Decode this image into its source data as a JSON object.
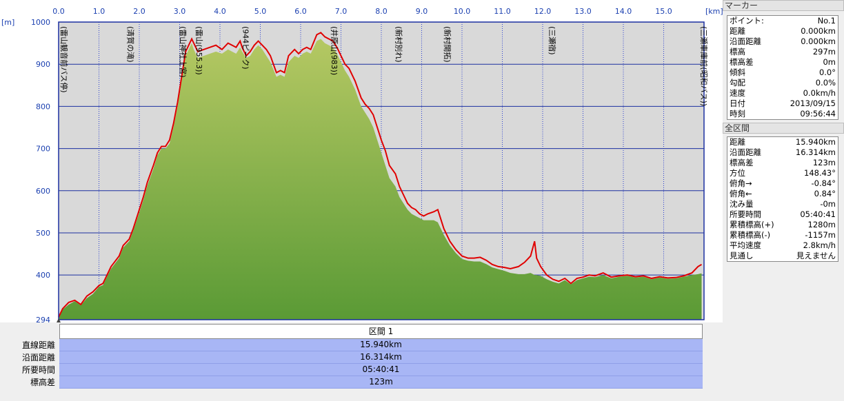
{
  "chart_data": {
    "type": "area",
    "x_unit": "[km]",
    "y_unit": "[m]",
    "xlim": [
      0,
      16.0
    ],
    "ylim": [
      294,
      1000
    ],
    "x_ticks": [
      "0.0",
      "1.0",
      "2.0",
      "3.0",
      "4.0",
      "5.0",
      "6.0",
      "7.0",
      "8.0",
      "9.0",
      "10.0",
      "11.0",
      "12.0",
      "13.0",
      "14.0",
      "15.0"
    ],
    "y_ticks": [
      "1000",
      "900",
      "800",
      "700",
      "600",
      "500",
      "400",
      "294"
    ],
    "grid": true,
    "series": [
      {
        "color": "#e00000",
        "x": [
          0.0,
          0.1,
          0.25,
          0.4,
          0.55,
          0.7,
          0.85,
          1.0,
          1.1,
          1.2,
          1.3,
          1.5,
          1.6,
          1.75,
          1.85,
          2.0,
          2.1,
          2.2,
          2.35,
          2.45,
          2.55,
          2.65,
          2.75,
          2.85,
          2.95,
          3.05,
          3.15,
          3.25,
          3.3,
          3.35,
          3.45,
          3.6,
          3.75,
          3.9,
          4.05,
          4.2,
          4.3,
          4.4,
          4.5,
          4.55,
          4.65,
          4.75,
          4.85,
          4.95,
          5.05,
          5.15,
          5.25,
          5.4,
          5.5,
          5.6,
          5.7,
          5.8,
          5.85,
          5.95,
          6.05,
          6.15,
          6.25,
          6.4,
          6.5,
          6.6,
          6.7,
          6.8,
          6.9,
          7.0,
          7.1,
          7.2,
          7.35,
          7.5,
          7.6,
          7.7,
          7.8,
          7.9,
          8.0,
          8.1,
          8.2,
          8.35,
          8.45,
          8.55,
          8.65,
          8.75,
          8.85,
          8.95,
          9.05,
          9.15,
          9.3,
          9.4,
          9.55,
          9.7,
          9.85,
          10.0,
          10.15,
          10.3,
          10.45,
          10.6,
          10.75,
          10.9,
          11.05,
          11.2,
          11.4,
          11.55,
          11.7,
          11.8,
          11.85,
          11.95,
          12.1,
          12.25,
          12.4,
          12.55,
          12.7,
          12.85,
          13.0,
          13.15,
          13.3,
          13.5,
          13.7,
          13.9,
          14.1,
          14.3,
          14.5,
          14.7,
          14.9,
          15.1,
          15.3,
          15.5,
          15.7,
          15.85,
          15.94
        ],
        "y": [
          300,
          320,
          335,
          340,
          330,
          350,
          360,
          375,
          380,
          400,
          420,
          445,
          470,
          485,
          510,
          555,
          585,
          620,
          660,
          690,
          705,
          705,
          720,
          760,
          810,
          870,
          930,
          950,
          960,
          950,
          930,
          935,
          940,
          945,
          935,
          950,
          945,
          940,
          955,
          940,
          920,
          930,
          945,
          955,
          945,
          935,
          920,
          880,
          885,
          880,
          920,
          930,
          935,
          925,
          935,
          940,
          935,
          970,
          975,
          965,
          960,
          955,
          940,
          920,
          900,
          890,
          860,
          820,
          805,
          795,
          780,
          750,
          720,
          695,
          660,
          640,
          610,
          590,
          570,
          560,
          555,
          545,
          540,
          545,
          550,
          555,
          510,
          480,
          460,
          445,
          440,
          440,
          442,
          435,
          425,
          420,
          418,
          415,
          420,
          430,
          445,
          480,
          440,
          420,
          400,
          390,
          385,
          392,
          380,
          392,
          395,
          400,
          398,
          405,
          395,
          398,
          400,
          396,
          398,
          392,
          396,
          393,
          394,
          398,
          405,
          420,
          425
        ]
      },
      {
        "color": "#7aa33a",
        "x": [
          0.0,
          0.1,
          0.25,
          0.4,
          0.55,
          0.7,
          0.85,
          1.0,
          1.1,
          1.2,
          1.3,
          1.5,
          1.6,
          1.75,
          1.85,
          2.0,
          2.1,
          2.2,
          2.35,
          2.45,
          2.55,
          2.65,
          2.75,
          2.85,
          2.95,
          3.05,
          3.15,
          3.25,
          3.3,
          3.35,
          3.45,
          3.6,
          3.75,
          3.9,
          4.05,
          4.2,
          4.3,
          4.4,
          4.5,
          4.55,
          4.65,
          4.75,
          4.85,
          4.95,
          5.05,
          5.15,
          5.25,
          5.4,
          5.5,
          5.6,
          5.7,
          5.8,
          5.85,
          5.95,
          6.05,
          6.15,
          6.25,
          6.4,
          6.5,
          6.6,
          6.7,
          6.8,
          6.9,
          7.0,
          7.1,
          7.2,
          7.35,
          7.5,
          7.6,
          7.7,
          7.8,
          7.9,
          8.0,
          8.1,
          8.2,
          8.35,
          8.45,
          8.55,
          8.65,
          8.75,
          8.85,
          8.95,
          9.05,
          9.15,
          9.3,
          9.4,
          9.55,
          9.7,
          9.85,
          10.0,
          10.15,
          10.3,
          10.45,
          10.6,
          10.75,
          10.9,
          11.05,
          11.2,
          11.4,
          11.55,
          11.7,
          11.8,
          11.85,
          11.95,
          12.1,
          12.25,
          12.4,
          12.55,
          12.7,
          12.85,
          13.0,
          13.15,
          13.3,
          13.5,
          13.7,
          13.9,
          14.1,
          14.3,
          14.5,
          14.7,
          14.9,
          15.1,
          15.3,
          15.5,
          15.7,
          15.85,
          15.94
        ],
        "y": [
          300,
          318,
          330,
          338,
          328,
          345,
          355,
          372,
          376,
          396,
          415,
          440,
          465,
          480,
          505,
          548,
          578,
          612,
          652,
          684,
          700,
          700,
          712,
          752,
          800,
          860,
          920,
          940,
          950,
          935,
          915,
          920,
          925,
          930,
          925,
          935,
          930,
          925,
          940,
          930,
          915,
          920,
          935,
          945,
          935,
          920,
          905,
          870,
          875,
          870,
          905,
          915,
          920,
          915,
          925,
          930,
          925,
          955,
          960,
          950,
          945,
          940,
          925,
          905,
          885,
          870,
          840,
          800,
          785,
          770,
          750,
          720,
          690,
          660,
          630,
          610,
          585,
          570,
          555,
          545,
          540,
          535,
          530,
          530,
          530,
          525,
          495,
          470,
          452,
          438,
          434,
          432,
          432,
          426,
          418,
          414,
          410,
          405,
          402,
          402,
          405,
          400,
          400,
          398,
          390,
          384,
          380,
          388,
          378,
          388,
          392,
          396,
          395,
          400,
          392,
          396,
          398,
          394,
          396,
          390,
          394,
          391,
          392,
          396,
          400,
          402,
          404
        ]
      }
    ],
    "annotations": [
      {
        "x": 0.0,
        "text": "(雷山観音前バス停)"
      },
      {
        "x": 1.65,
        "text": "(清賀の滝)"
      },
      {
        "x": 2.95,
        "text": "(雷山神社上宮)"
      },
      {
        "x": 3.35,
        "text": "(雷山(955.3))"
      },
      {
        "x": 4.5,
        "text": "(944ピーク)"
      },
      {
        "x": 6.7,
        "text": "(井原山(983))"
      },
      {
        "x": 8.3,
        "text": "(新村別れ)"
      },
      {
        "x": 9.5,
        "text": "(新村開拓)"
      },
      {
        "x": 12.1,
        "text": "(三瀬宿)"
      },
      {
        "x": 15.94,
        "text": "(三瀬車庫前(昭和バス))"
      }
    ]
  },
  "summary": {
    "section_title": "区間 1",
    "rows": [
      {
        "label": "直線距離",
        "value": "15.940km"
      },
      {
        "label": "沿面距離",
        "value": "16.314km"
      },
      {
        "label": "所要時間",
        "value": "05:40:41"
      },
      {
        "label": "標高差",
        "value": "123m"
      }
    ]
  },
  "marker_panel": {
    "title": "マーカー",
    "rows": [
      {
        "k": "ポイント:",
        "v": "No.1"
      },
      {
        "k": "距離",
        "v": "0.000km"
      },
      {
        "k": "沿面距離",
        "v": "0.000km"
      },
      {
        "k": "標高",
        "v": "297m"
      },
      {
        "k": "標高差",
        "v": "0m"
      },
      {
        "k": "傾斜",
        "v": "0.0°"
      },
      {
        "k": "勾配",
        "v": "0.0%"
      },
      {
        "k": "速度",
        "v": "0.0km/h"
      },
      {
        "k": "日付",
        "v": "2013/09/15"
      },
      {
        "k": "時刻",
        "v": "09:56:44"
      }
    ]
  },
  "section_panel": {
    "title": "全区間",
    "rows": [
      {
        "k": "距離",
        "v": "15.940km"
      },
      {
        "k": "沿面距離",
        "v": "16.314km"
      },
      {
        "k": "標高差",
        "v": "123m"
      },
      {
        "k": "方位",
        "v": "148.43°"
      },
      {
        "k": "俯角→",
        "v": "-0.84°"
      },
      {
        "k": "俯角←",
        "v": "0.84°"
      },
      {
        "k": "沈み量",
        "v": "-0m"
      },
      {
        "k": "所要時間",
        "v": "05:40:41"
      },
      {
        "k": "累積標高(+)",
        "v": "1280m"
      },
      {
        "k": "累積標高(-)",
        "v": "-1157m"
      },
      {
        "k": "平均速度",
        "v": "2.8km/h"
      },
      {
        "k": "見通し",
        "v": "見えません"
      }
    ]
  }
}
